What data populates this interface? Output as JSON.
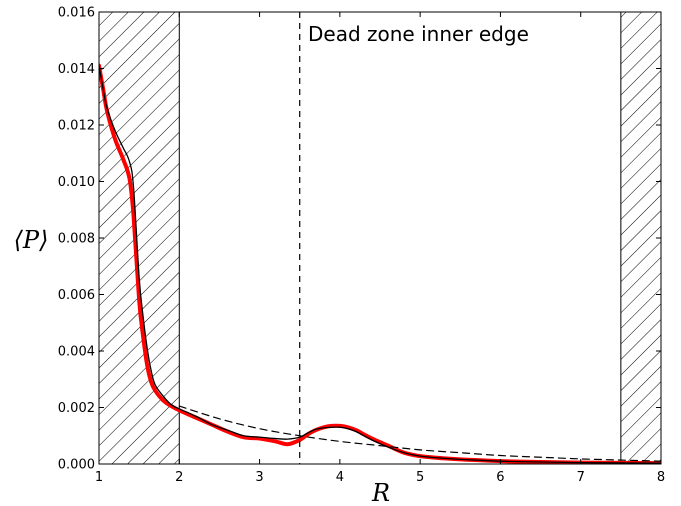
{
  "chart_data": {
    "type": "line",
    "title": "",
    "xlabel": "R",
    "ylabel": "⟨P⟩",
    "xlim": [
      1,
      8
    ],
    "ylim": [
      0,
      0.016
    ],
    "x_ticks": [
      "1",
      "2",
      "3",
      "4",
      "5",
      "6",
      "7",
      "8"
    ],
    "y_ticks": [
      "0.000",
      "0.002",
      "0.004",
      "0.006",
      "0.008",
      "0.010",
      "0.012",
      "0.014",
      "0.016"
    ],
    "hatched_regions": [
      [
        1,
        2
      ],
      [
        7.5,
        8
      ]
    ],
    "vertical_line": {
      "x": 3.5,
      "style": "dashed"
    },
    "annotation": "Dead zone inner edge",
    "grid": false,
    "series": [
      {
        "color": "#ff0000",
        "style": "solid-thick",
        "x": [
          1.0,
          1.05,
          1.1,
          1.2,
          1.3,
          1.38,
          1.43,
          1.5,
          1.55,
          1.6,
          1.65,
          1.7,
          1.8,
          1.9,
          2.0,
          2.2,
          2.4,
          2.6,
          2.8,
          3.0,
          3.2,
          3.35,
          3.5,
          3.6,
          3.7,
          3.8,
          3.9,
          4.0,
          4.1,
          4.2,
          4.3,
          4.4,
          4.6,
          4.8,
          5.0,
          5.3,
          5.6,
          6.0,
          6.5,
          7.0,
          7.5,
          8.0
        ],
        "y": [
          0.0141,
          0.0133,
          0.0125,
          0.0115,
          0.0108,
          0.0101,
          0.0088,
          0.0058,
          0.0045,
          0.0035,
          0.0029,
          0.0026,
          0.00225,
          0.00205,
          0.0019,
          0.00165,
          0.0014,
          0.00115,
          0.00095,
          0.0009,
          0.0008,
          0.0007,
          0.00085,
          0.00105,
          0.0012,
          0.0013,
          0.00135,
          0.00135,
          0.0013,
          0.0012,
          0.00105,
          0.0009,
          0.00065,
          0.0004,
          0.00028,
          0.0002,
          0.00015,
          0.0001,
          7e-05,
          5e-05,
          4e-05,
          3e-05
        ]
      },
      {
        "color": "#000000",
        "style": "solid-thin",
        "x": [
          1.0,
          1.05,
          1.1,
          1.2,
          1.3,
          1.38,
          1.43,
          1.5,
          1.55,
          1.6,
          1.65,
          1.7,
          1.8,
          1.9,
          2.0,
          2.2,
          2.4,
          2.6,
          2.8,
          3.0,
          3.2,
          3.35,
          3.5,
          3.6,
          3.7,
          3.8,
          3.9,
          4.0,
          4.1,
          4.2,
          4.3,
          4.4,
          4.6,
          4.8,
          5.0,
          5.3,
          5.6,
          6.0,
          6.5,
          7.0,
          7.5,
          8.0
        ],
        "y": [
          0.0141,
          0.0133,
          0.0126,
          0.0118,
          0.0112,
          0.0107,
          0.0098,
          0.0066,
          0.0052,
          0.0041,
          0.0033,
          0.0028,
          0.0024,
          0.0021,
          0.00195,
          0.0017,
          0.0014,
          0.0012,
          0.001,
          0.00095,
          0.0009,
          0.00088,
          0.00095,
          0.0011,
          0.00123,
          0.00128,
          0.0013,
          0.0013,
          0.00125,
          0.00115,
          0.001,
          0.00085,
          0.0006,
          0.0004,
          0.00028,
          0.0002,
          0.00015,
          0.0001,
          7e-05,
          5e-05,
          4e-05,
          3e-05
        ]
      },
      {
        "color": "#000000",
        "style": "dashed",
        "x": [
          2.0,
          2.5,
          3.0,
          3.5,
          4.0,
          4.5,
          5.0,
          5.5,
          6.0,
          6.5,
          7.0,
          7.5,
          8.0
        ],
        "y": [
          0.00205,
          0.0016,
          0.00125,
          0.001,
          0.0008,
          0.00065,
          0.0005,
          0.0004,
          0.0003,
          0.00024,
          0.00018,
          0.00014,
          0.0001
        ]
      }
    ]
  }
}
